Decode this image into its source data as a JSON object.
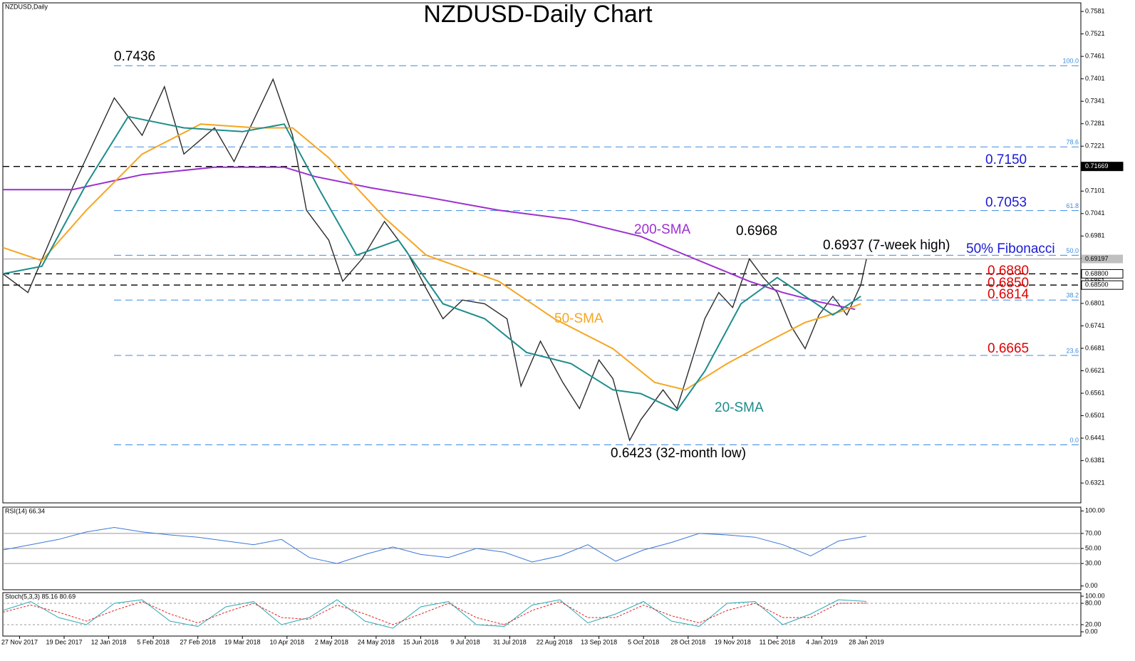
{
  "chart_data": [
    {
      "type": "line",
      "panel": "main",
      "title": "NZDUSD-Daily Chart",
      "label": "NZDUSD,Daily",
      "xlim": [
        0,
        387
      ],
      "xticks": [
        {
          "value": 6,
          "label": "27 Nov 2017"
        },
        {
          "value": 22,
          "label": "19 Dec 2017"
        },
        {
          "value": 38,
          "label": "12 Jan 2018"
        },
        {
          "value": 54,
          "label": "5 Feb 2018"
        },
        {
          "value": 70,
          "label": "27 Feb 2018"
        },
        {
          "value": 86,
          "label": "19 Mar 2018"
        },
        {
          "value": 102,
          "label": "10 Apr 2018"
        },
        {
          "value": 118,
          "label": "2 May 2018"
        },
        {
          "value": 134,
          "label": "24 May 2018"
        },
        {
          "value": 150,
          "label": "15 Jun 2018"
        },
        {
          "value": 166,
          "label": "9 Jul 2018"
        },
        {
          "value": 182,
          "label": "31 Jul 2018"
        },
        {
          "value": 198,
          "label": "22 Aug 2018"
        },
        {
          "value": 214,
          "label": "13 Sep 2018"
        },
        {
          "value": 230,
          "label": "5 Oct 2018"
        },
        {
          "value": 246,
          "label": "28 Oct 2018"
        },
        {
          "value": 262,
          "label": "19 Nov 2018"
        },
        {
          "value": 278,
          "label": "11 Dec 2018"
        },
        {
          "value": 294,
          "label": "4 Jan 2019"
        },
        {
          "value": 310,
          "label": "28 Jan 2019"
        }
      ],
      "ylim": [
        0.6268,
        0.7604
      ],
      "yticks": [
        0.7581,
        0.7521,
        0.7461,
        0.7401,
        0.7341,
        0.7281,
        0.7221,
        0.7161,
        0.7101,
        0.7041,
        0.6981,
        0.6921,
        0.6861,
        0.6801,
        0.6741,
        0.6681,
        0.6621,
        0.6561,
        0.6501,
        0.6441,
        0.6381,
        0.6321
      ],
      "levels": [
        0.71669,
        {
          "value": 0.688,
          "label": "0.68800"
        },
        {
          "value": 0.685,
          "label": "0.68500"
        }
      ],
      "last_price": {
        "value": 0.69197,
        "label": "0.69197"
      },
      "fib_levels": [
        {
          "value": 0.7436,
          "label": "100.0"
        },
        {
          "value": 0.7219,
          "label": "78.6"
        },
        {
          "value": 0.7049,
          "label": "61.8"
        },
        {
          "value": 0.69295,
          "label": "50.0"
        },
        {
          "value": 0.681,
          "label": "38.2"
        },
        {
          "value": 0.6662,
          "label": "23.6"
        },
        {
          "value": 0.6423,
          "label": "0.0"
        }
      ],
      "series": [
        {
          "name": "Close",
          "color": "#2b2b2b",
          "x": [
            0,
            9,
            25,
            40,
            50,
            58,
            65,
            76,
            83,
            97,
            104,
            109,
            117,
            122,
            129,
            137,
            145,
            152,
            158,
            165,
            173,
            181,
            186,
            193,
            201,
            207,
            214,
            219,
            225,
            229,
            237,
            242,
            247,
            252,
            257,
            262,
            268,
            273,
            278,
            283,
            288,
            293,
            298,
            303,
            308,
            310
          ],
          "values": [
            0.688,
            0.683,
            0.711,
            0.735,
            0.725,
            0.738,
            0.72,
            0.727,
            0.718,
            0.74,
            0.725,
            0.705,
            0.697,
            0.686,
            0.692,
            0.702,
            0.694,
            0.684,
            0.676,
            0.681,
            0.68,
            0.676,
            0.658,
            0.67,
            0.659,
            0.652,
            0.665,
            0.66,
            0.6435,
            0.649,
            0.657,
            0.652,
            0.664,
            0.676,
            0.683,
            0.679,
            0.692,
            0.687,
            0.683,
            0.674,
            0.668,
            0.677,
            0.682,
            0.677,
            0.685,
            0.6919
          ]
        },
        {
          "name": "200-SMA",
          "color": "#9b30d0",
          "x": [
            0,
            25,
            50,
            76,
            101,
            112,
            132,
            152,
            178,
            204,
            229,
            250,
            268,
            280,
            293,
            306
          ],
          "values": [
            0.7105,
            0.7105,
            0.7145,
            0.7165,
            0.7165,
            0.714,
            0.711,
            0.7085,
            0.705,
            0.7025,
            0.698,
            0.6915,
            0.686,
            0.683,
            0.6805,
            0.6785
          ]
        },
        {
          "name": "50-SMA",
          "color": "#f5a623",
          "x": [
            0,
            14,
            30,
            50,
            71,
            91,
            104,
            117,
            137,
            152,
            178,
            198,
            219,
            234,
            245,
            260,
            275,
            288,
            301,
            308
          ],
          "values": [
            0.695,
            0.6915,
            0.705,
            0.72,
            0.728,
            0.727,
            0.727,
            0.719,
            0.703,
            0.693,
            0.686,
            0.676,
            0.668,
            0.659,
            0.657,
            0.664,
            0.67,
            0.675,
            0.678,
            0.68
          ]
        },
        {
          "name": "20-SMA",
          "color": "#1e8c8c",
          "x": [
            0,
            14,
            30,
            45,
            65,
            86,
            101,
            114,
            127,
            142,
            158,
            173,
            188,
            204,
            219,
            229,
            242,
            252,
            265,
            278,
            288,
            298,
            308
          ],
          "values": [
            0.688,
            0.69,
            0.712,
            0.73,
            0.727,
            0.726,
            0.728,
            0.71,
            0.693,
            0.697,
            0.68,
            0.676,
            0.667,
            0.664,
            0.657,
            0.656,
            0.6515,
            0.662,
            0.68,
            0.687,
            0.682,
            0.677,
            0.682
          ]
        }
      ],
      "annotations": [
        {
          "text": "0.7436",
          "color": "#000000"
        },
        {
          "text": "0.6968",
          "color": "#000000"
        },
        {
          "text": "0.6937 (7-week high)",
          "color": "#000000"
        },
        {
          "text": "50% Fibonacci",
          "color": "#1a1ad6"
        },
        {
          "text": "0.7150",
          "color": "#1a1ad6"
        },
        {
          "text": "0.7053",
          "color": "#1a1ad6"
        },
        {
          "text": "0.6880",
          "color": "#e00000"
        },
        {
          "text": "0.6850",
          "color": "#e00000"
        },
        {
          "text": "0.6814",
          "color": "#e00000"
        },
        {
          "text": "0.6665",
          "color": "#e00000"
        },
        {
          "text": "200-SMA",
          "color": "#9b30d0"
        },
        {
          "text": "50-SMA",
          "color": "#f5a623"
        },
        {
          "text": "20-SMA",
          "color": "#1e8c8c"
        },
        {
          "text": "0.6423 (32-month low)",
          "color": "#000000"
        }
      ]
    },
    {
      "type": "line",
      "panel": "rsi",
      "label": "RSI(14) 66.34",
      "xlim": [
        0,
        387
      ],
      "ylim": [
        -5,
        105
      ],
      "yticks": [
        {
          "value": 100,
          "label": "100.00"
        },
        {
          "value": 70,
          "label": "70.00"
        },
        {
          "value": 50,
          "label": "50.00"
        },
        {
          "value": 30,
          "label": "30.00"
        },
        {
          "value": 0,
          "label": "0.00"
        }
      ],
      "levels": [
        70,
        50,
        30
      ],
      "series": [
        {
          "name": "RSI",
          "color": "#3c78d8",
          "x": [
            0,
            10,
            20,
            30,
            40,
            50,
            60,
            70,
            80,
            90,
            100,
            110,
            120,
            130,
            140,
            150,
            160,
            170,
            180,
            190,
            200,
            210,
            220,
            230,
            240,
            250,
            260,
            270,
            280,
            290,
            300,
            310
          ],
          "values": [
            48,
            55,
            62,
            72,
            78,
            72,
            68,
            65,
            60,
            55,
            62,
            38,
            30,
            42,
            52,
            42,
            38,
            50,
            45,
            32,
            40,
            55,
            33,
            48,
            58,
            70,
            68,
            65,
            55,
            40,
            60,
            66.34
          ]
        }
      ]
    },
    {
      "type": "line",
      "panel": "stoch",
      "label": "Stoch(5,3,3) 85.16 80.69",
      "xlim": [
        0,
        387
      ],
      "ylim": [
        -12,
        110
      ],
      "yticks": [
        {
          "value": 100,
          "label": "100.00"
        },
        {
          "value": 80,
          "label": "80.00"
        },
        {
          "value": 20,
          "label": "20.00"
        },
        {
          "value": 0,
          "label": "0.00"
        }
      ],
      "levels": [
        80,
        20
      ],
      "series": [
        {
          "name": "%K",
          "color": "#2aa9b3",
          "x": [
            0,
            10,
            20,
            30,
            40,
            50,
            60,
            70,
            80,
            90,
            100,
            110,
            120,
            130,
            140,
            150,
            160,
            170,
            180,
            190,
            200,
            210,
            220,
            230,
            240,
            250,
            260,
            270,
            280,
            290,
            300,
            310
          ],
          "values": [
            60,
            85,
            40,
            20,
            80,
            90,
            30,
            15,
            70,
            85,
            20,
            40,
            90,
            30,
            10,
            70,
            85,
            20,
            15,
            75,
            90,
            25,
            50,
            85,
            30,
            15,
            80,
            85,
            20,
            50,
            90,
            85.16
          ]
        },
        {
          "name": "%D",
          "color": "#e02020",
          "dashed": true,
          "x": [
            0,
            10,
            20,
            30,
            40,
            50,
            60,
            70,
            80,
            90,
            100,
            110,
            120,
            130,
            140,
            150,
            160,
            170,
            180,
            190,
            200,
            210,
            220,
            230,
            240,
            250,
            260,
            270,
            280,
            290,
            300,
            310
          ],
          "values": [
            55,
            75,
            55,
            30,
            60,
            85,
            50,
            25,
            55,
            80,
            40,
            35,
            75,
            50,
            20,
            50,
            80,
            40,
            20,
            60,
            85,
            40,
            40,
            75,
            45,
            25,
            60,
            80,
            40,
            40,
            80,
            80.69
          ]
        }
      ]
    }
  ]
}
